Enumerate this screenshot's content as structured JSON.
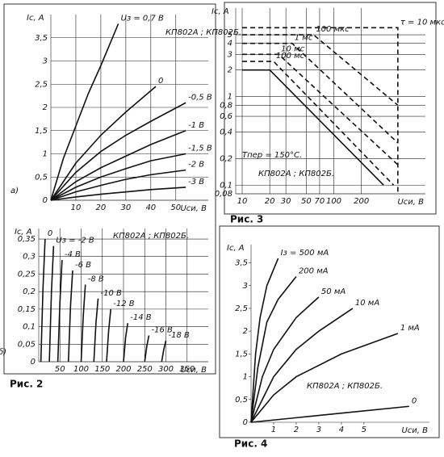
{
  "chart_data": [
    {
      "type": "line",
      "panel": "а)",
      "y_label": "Iс, А",
      "x_label": "Uси, В",
      "annotation": "КП802А ;\nКП802Б.",
      "xlim": [
        0,
        63
      ],
      "ylim": [
        0,
        4
      ],
      "xticks": [
        10,
        20,
        30,
        40,
        50
      ],
      "yticks": [
        0,
        {
          "value": 0.5,
          "label": "0,5"
        },
        1,
        {
          "value": 1.5,
          "label": "1,5"
        },
        2,
        {
          "value": 2.5,
          "label": "2,5"
        },
        3,
        {
          "value": 3.5,
          "label": "3,5"
        }
      ],
      "grid": true,
      "color": "#111",
      "series": [
        {
          "name": "Uз = 0,7 В",
          "x": [
            0,
            5,
            10,
            15,
            20,
            27
          ],
          "values": [
            0,
            0.9,
            1.6,
            2.3,
            2.9,
            3.8
          ]
        },
        {
          "name": "0",
          "x": [
            0,
            10,
            20,
            30,
            42
          ],
          "values": [
            0,
            0.8,
            1.4,
            1.9,
            2.45
          ]
        },
        {
          "name": "-0,5 В",
          "x": [
            0,
            10,
            20,
            30,
            40,
            54
          ],
          "values": [
            0,
            0.6,
            1.05,
            1.4,
            1.7,
            2.1
          ]
        },
        {
          "name": "-1 В",
          "x": [
            0,
            10,
            20,
            30,
            40,
            54
          ],
          "values": [
            0,
            0.4,
            0.7,
            0.95,
            1.2,
            1.5
          ]
        },
        {
          "name": "-1,5 В",
          "x": [
            0,
            10,
            20,
            30,
            40,
            54
          ],
          "values": [
            0,
            0.28,
            0.5,
            0.68,
            0.85,
            1.0
          ]
        },
        {
          "name": "-2 В",
          "x": [
            0,
            10,
            20,
            30,
            40,
            54
          ],
          "values": [
            0,
            0.18,
            0.32,
            0.45,
            0.55,
            0.65
          ]
        },
        {
          "name": "-3 В",
          "x": [
            0,
            10,
            20,
            30,
            40,
            54
          ],
          "values": [
            0,
            0.07,
            0.13,
            0.18,
            0.23,
            0.28
          ]
        }
      ]
    },
    {
      "type": "line",
      "panel": "б)",
      "caption": "Рис. 2",
      "y_label": "Iс, А",
      "x_label": "Uси, В",
      "annotation": "КП802А ; КП802Б.",
      "xlim": [
        0,
        400
      ],
      "ylim": [
        0,
        0.38
      ],
      "xticks": [
        50,
        100,
        150,
        200,
        250,
        300,
        350
      ],
      "yticks": [
        0,
        {
          "value": 0.05,
          "label": "0,05"
        },
        {
          "value": 0.1,
          "label": "0,1"
        },
        {
          "value": 0.15,
          "label": "0,15"
        },
        {
          "value": 0.2,
          "label": "0,2"
        },
        {
          "value": 0.25,
          "label": "0,25"
        },
        {
          "value": 0.3,
          "label": "0,3"
        },
        {
          "value": 0.35,
          "label": "0,35"
        }
      ],
      "grid": true,
      "color": "#111",
      "series": [
        {
          "name": "0",
          "x": [
            5,
            10,
            15
          ],
          "values": [
            0,
            0.21,
            0.35
          ]
        },
        {
          "name": "Uз = -2 В",
          "x": [
            25,
            30,
            35
          ],
          "values": [
            0,
            0.2,
            0.33
          ]
        },
        {
          "name": "-4 В",
          "x": [
            45,
            50,
            55
          ],
          "values": [
            0,
            0.17,
            0.29
          ]
        },
        {
          "name": "-6 В",
          "x": [
            70,
            75,
            80
          ],
          "values": [
            0,
            0.16,
            0.26
          ]
        },
        {
          "name": "-8 В",
          "x": [
            100,
            105,
            110
          ],
          "values": [
            0,
            0.13,
            0.22
          ]
        },
        {
          "name": "-10 В",
          "x": [
            130,
            135,
            140
          ],
          "values": [
            0,
            0.11,
            0.18
          ]
        },
        {
          "name": "-12 В",
          "x": [
            160,
            165,
            170
          ],
          "values": [
            0,
            0.09,
            0.15
          ]
        },
        {
          "name": "-14 В",
          "x": [
            200,
            205,
            210
          ],
          "values": [
            0,
            0.07,
            0.11
          ]
        },
        {
          "name": "-16 В",
          "x": [
            250,
            255,
            260
          ],
          "values": [
            0,
            0.045,
            0.075
          ]
        },
        {
          "name": "-18 В",
          "x": [
            290,
            295,
            300
          ],
          "values": [
            0,
            0.035,
            0.06
          ]
        }
      ]
    },
    {
      "type": "line",
      "caption": "Рис. 3",
      "y_label": "Iс, А",
      "x_label": "Uси, В",
      "annotation": "КП802А ; КП802Б.",
      "annotation2": "Тпер = 150°С.",
      "log_x": true,
      "log_y": true,
      "xlim": [
        8.5,
        1000
      ],
      "ylim": [
        0.08,
        10
      ],
      "xticks": [
        10,
        20,
        30,
        50,
        70,
        100,
        200
      ],
      "yticks": [
        {
          "value": 0.08,
          "label": "0,08"
        },
        {
          "value": 0.1,
          "label": "0,1"
        },
        {
          "value": 0.2,
          "label": "0,2"
        },
        {
          "value": 0.4,
          "label": "0,4"
        },
        {
          "value": 0.6,
          "label": "0,6"
        },
        {
          "value": 0.8,
          "label": "0,8"
        },
        1,
        2,
        3,
        4,
        5
      ],
      "grid": true,
      "color": "#111",
      "series": [
        {
          "x": [
            10,
            20,
            350
          ],
          "values": [
            2,
            2,
            0.1
          ],
          "style": "solid"
        },
        {
          "name": "100 мс",
          "x": [
            10,
            22,
            450
          ],
          "values": [
            2.5,
            2.5,
            0.1
          ],
          "style": "dashed"
        },
        {
          "name": "10 мс",
          "x": [
            10,
            25,
            500
          ],
          "values": [
            3,
            3,
            0.17
          ],
          "style": "dashed"
        },
        {
          "name": "1 мс",
          "x": [
            10,
            35,
            500
          ],
          "values": [
            4,
            4,
            0.3
          ],
          "style": "dashed"
        },
        {
          "name": "100 мкс",
          "x": [
            10,
            60,
            500
          ],
          "values": [
            5,
            5,
            0.8
          ],
          "style": "dashed"
        },
        {
          "name": "τ = 10 мкс",
          "x": [
            10,
            500,
            500
          ],
          "values": [
            6,
            6,
            0.08
          ],
          "style": "dashed"
        }
      ]
    },
    {
      "type": "line",
      "caption": "Рис. 4",
      "y_label": "Iс, А",
      "x_label": "Uси, В",
      "annotation": "КП802А ; КП802Б.",
      "xlim": [
        0,
        7.9
      ],
      "ylim": [
        0,
        3.9
      ],
      "xticks": [
        1,
        2,
        3,
        4,
        5
      ],
      "yticks": [
        0,
        {
          "value": 0.5,
          "label": "0,5"
        },
        1,
        {
          "value": 1.5,
          "label": "1,5"
        },
        2,
        {
          "value": 2.5,
          "label": "2,5"
        },
        3,
        {
          "value": 3.5,
          "label": "3,5"
        }
      ],
      "grid": false,
      "color": "#111",
      "series": [
        {
          "name": "Iз = 500 мА",
          "x": [
            0,
            0.2,
            0.4,
            0.7,
            1.2
          ],
          "values": [
            0,
            1.5,
            2.3,
            3.0,
            3.6
          ]
        },
        {
          "name": "200 мА",
          "x": [
            0,
            0.3,
            0.7,
            1.2,
            2
          ],
          "values": [
            0,
            1.2,
            2.2,
            2.7,
            3.2
          ]
        },
        {
          "name": "50 мА",
          "x": [
            0,
            0.5,
            1,
            2,
            3
          ],
          "values": [
            0,
            1.0,
            1.6,
            2.3,
            2.75
          ]
        },
        {
          "name": "10 мА",
          "x": [
            0,
            1,
            2,
            3,
            4.5
          ],
          "values": [
            0,
            1.0,
            1.6,
            2.0,
            2.5
          ]
        },
        {
          "name": "1 мА",
          "x": [
            0,
            1,
            2,
            4,
            6.5
          ],
          "values": [
            0,
            0.6,
            1.0,
            1.5,
            1.95
          ]
        },
        {
          "name": "0",
          "x": [
            0,
            2,
            4,
            7
          ],
          "values": [
            0,
            0.1,
            0.2,
            0.35
          ]
        }
      ]
    }
  ]
}
